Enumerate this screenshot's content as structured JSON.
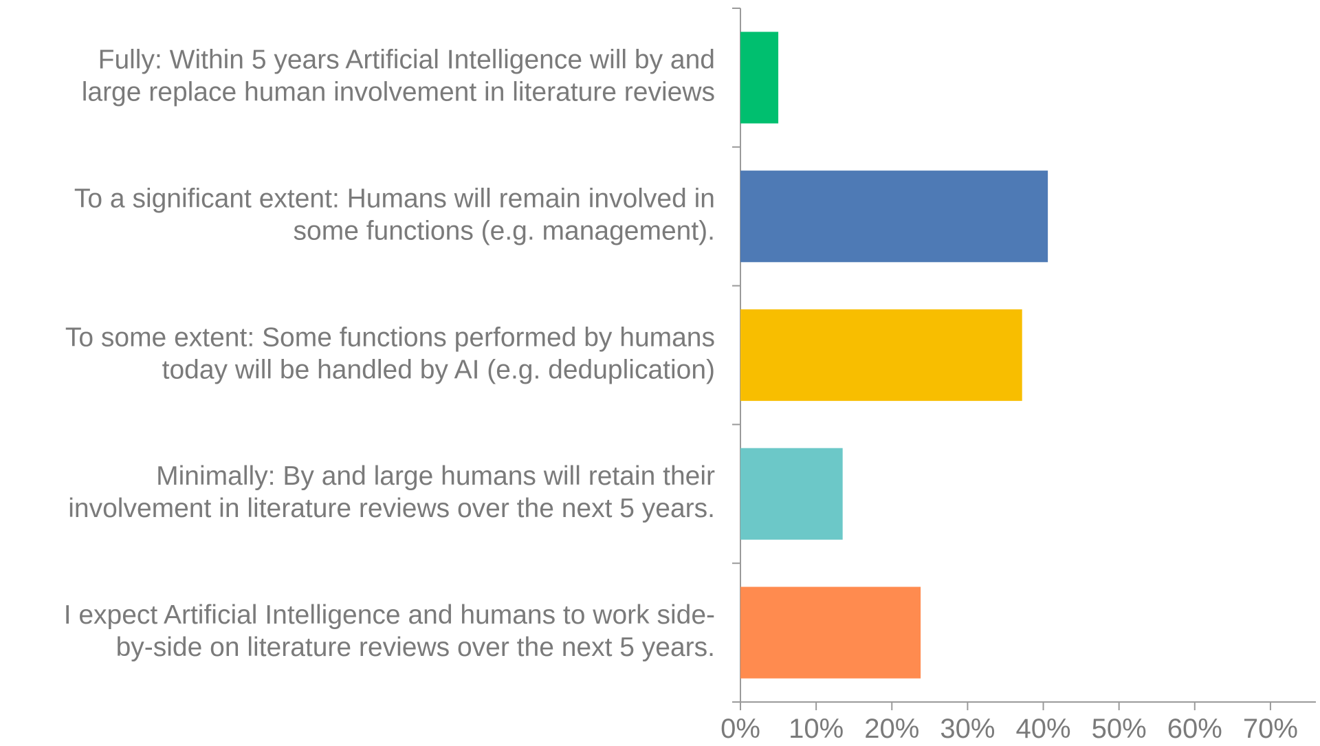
{
  "chart_data": {
    "type": "bar",
    "orientation": "horizontal",
    "categories": [
      [
        "Fully: Within 5 years Artificial Intelligence will by and",
        "large replace human involvement in literature reviews"
      ],
      [
        "To a significant extent: Humans will remain involved in",
        "some functions (e.g. management)."
      ],
      [
        "To some extent: Some functions performed by humans",
        "today will be handled by AI (e.g. deduplication)"
      ],
      [
        "Minimally: By and large humans will retain their",
        "involvement in literature reviews over the next 5 years."
      ],
      [
        "I expect Artificial Intelligence and humans to work side-",
        "by-side on literature reviews over the next 5 years."
      ]
    ],
    "values": [
      5,
      40.6,
      37.2,
      13.5,
      23.8
    ],
    "colors": [
      "#00bf6f",
      "#4e7ab5",
      "#f8be00",
      "#6cc8c8",
      "#ff8b4f"
    ],
    "xlim": [
      0,
      76
    ],
    "xticks": [
      0,
      10,
      20,
      30,
      40,
      50,
      60,
      70
    ],
    "xtick_labels": [
      "0%",
      "10%",
      "20%",
      "30%",
      "40%",
      "50%",
      "60%",
      "70%"
    ],
    "grid": false,
    "legend": "none",
    "title": "",
    "xlabel": "",
    "ylabel": ""
  }
}
